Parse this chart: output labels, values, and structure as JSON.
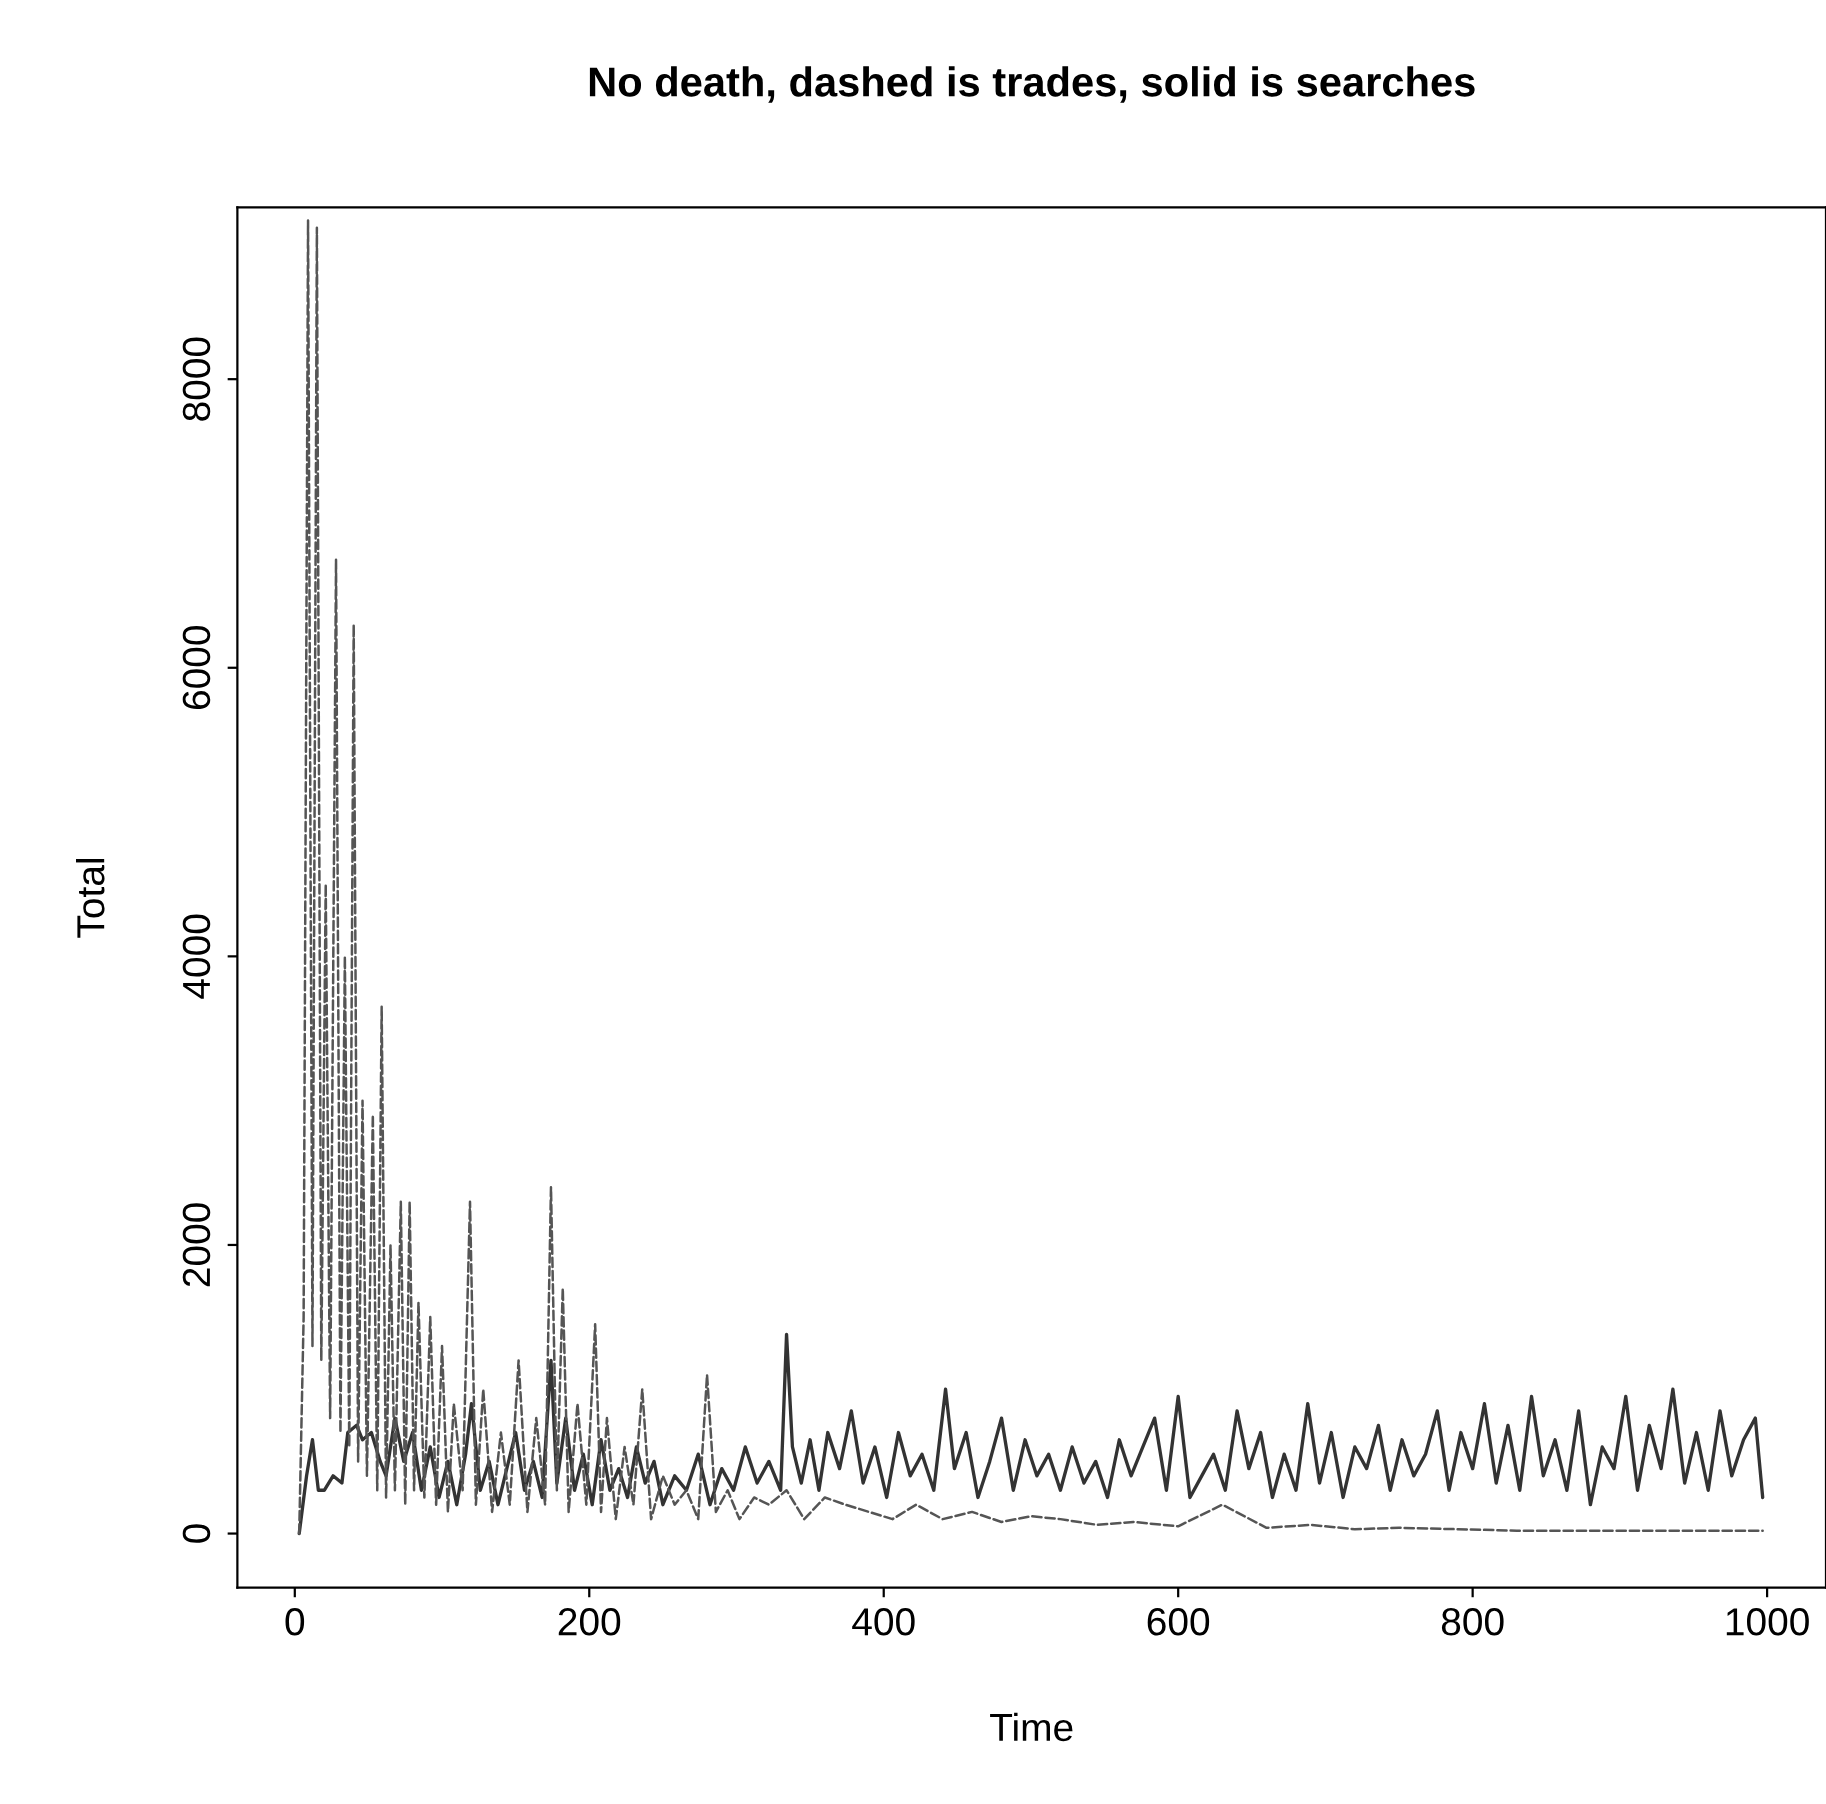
{
  "chart_data": {
    "type": "line",
    "title": "No death, dashed is trades, solid is searches",
    "xlabel": "Time",
    "ylabel": "Total",
    "xlim": [
      -39,
      1040
    ],
    "ylim": [
      -374,
      9190
    ],
    "xticks": [
      0,
      200,
      400,
      600,
      800,
      1000
    ],
    "yticks": [
      0,
      2000,
      4000,
      6000,
      8000
    ],
    "grid": false,
    "legend": false,
    "series": [
      {
        "color": "#333333",
        "line_style": "solid",
        "x": [
          3,
          8,
          12,
          16,
          20,
          26,
          32,
          36,
          42,
          46,
          52,
          58,
          62,
          68,
          74,
          80,
          86,
          92,
          98,
          104,
          110,
          116,
          120,
          126,
          132,
          138,
          144,
          150,
          156,
          162,
          168,
          174,
          178,
          184,
          190,
          196,
          202,
          208,
          214,
          220,
          226,
          232,
          238,
          244,
          250,
          258,
          266,
          274,
          282,
          290,
          298,
          306,
          314,
          322,
          330,
          334,
          338,
          344,
          350,
          356,
          362,
          370,
          378,
          386,
          394,
          402,
          410,
          418,
          426,
          434,
          442,
          448,
          456,
          464,
          472,
          480,
          488,
          496,
          504,
          512,
          520,
          528,
          536,
          544,
          552,
          560,
          568,
          576,
          584,
          592,
          600,
          608,
          616,
          624,
          632,
          640,
          648,
          656,
          664,
          672,
          680,
          688,
          696,
          704,
          712,
          720,
          728,
          736,
          744,
          752,
          760,
          768,
          776,
          784,
          792,
          800,
          808,
          816,
          824,
          832,
          840,
          848,
          856,
          864,
          872,
          880,
          888,
          896,
          904,
          912,
          920,
          928,
          936,
          944,
          952,
          960,
          968,
          976,
          984,
          992,
          997
        ],
        "values": [
          0,
          400,
          650,
          300,
          300,
          400,
          350,
          700,
          750,
          650,
          700,
          500,
          400,
          800,
          500,
          700,
          300,
          600,
          250,
          500,
          200,
          550,
          900,
          300,
          500,
          200,
          450,
          700,
          300,
          500,
          250,
          1200,
          350,
          800,
          300,
          550,
          200,
          650,
          300,
          450,
          250,
          600,
          350,
          500,
          200,
          400,
          300,
          550,
          200,
          450,
          300,
          600,
          350,
          500,
          300,
          1380,
          600,
          350,
          650,
          300,
          700,
          450,
          850,
          350,
          600,
          250,
          700,
          400,
          550,
          300,
          1000,
          450,
          700,
          250,
          500,
          800,
          300,
          650,
          400,
          550,
          300,
          600,
          350,
          500,
          250,
          650,
          400,
          600,
          800,
          300,
          950,
          250,
          400,
          550,
          300,
          850,
          450,
          700,
          250,
          550,
          300,
          900,
          350,
          700,
          250,
          600,
          450,
          750,
          300,
          650,
          400,
          550,
          850,
          300,
          700,
          450,
          900,
          350,
          750,
          300,
          950,
          400,
          650,
          300,
          850,
          200,
          600,
          450,
          950,
          300,
          750,
          450,
          1000,
          350,
          700,
          300,
          850,
          400,
          650,
          800,
          250
        ]
      },
      {
        "color": "#555555",
        "line_style": "dashed",
        "x": [
          3,
          6,
          9,
          12,
          15,
          18,
          21,
          24,
          28,
          31,
          34,
          37,
          40,
          43,
          46,
          49,
          53,
          56,
          59,
          62,
          65,
          68,
          72,
          75,
          78,
          81,
          84,
          88,
          92,
          96,
          100,
          104,
          108,
          114,
          119,
          123,
          128,
          134,
          140,
          146,
          152,
          158,
          164,
          170,
          174,
          178,
          182,
          186,
          192,
          198,
          204,
          208,
          212,
          218,
          224,
          230,
          236,
          242,
          250,
          258,
          266,
          274,
          280,
          286,
          294,
          302,
          312,
          322,
          334,
          346,
          360,
          374,
          390,
          406,
          422,
          440,
          460,
          480,
          500,
          520,
          545,
          570,
          600,
          630,
          660,
          690,
          720,
          750,
          790,
          830,
          870,
          910,
          950,
          997
        ],
        "values": [
          0,
          1500,
          9100,
          1300,
          9050,
          1200,
          4500,
          800,
          6750,
          700,
          4000,
          600,
          6300,
          500,
          3000,
          400,
          2900,
          300,
          3650,
          250,
          2000,
          300,
          2300,
          200,
          2300,
          300,
          1600,
          250,
          1500,
          200,
          1300,
          150,
          900,
          300,
          2300,
          200,
          1000,
          150,
          700,
          200,
          1200,
          150,
          800,
          200,
          2400,
          300,
          1700,
          150,
          900,
          200,
          1450,
          150,
          800,
          100,
          600,
          200,
          1000,
          100,
          400,
          200,
          300,
          100,
          1100,
          150,
          300,
          100,
          250,
          200,
          300,
          100,
          250,
          200,
          150,
          100,
          200,
          100,
          150,
          80,
          120,
          100,
          60,
          80,
          50,
          200,
          40,
          60,
          30,
          40,
          30,
          20,
          20,
          20,
          20,
          20
        ]
      }
    ]
  }
}
